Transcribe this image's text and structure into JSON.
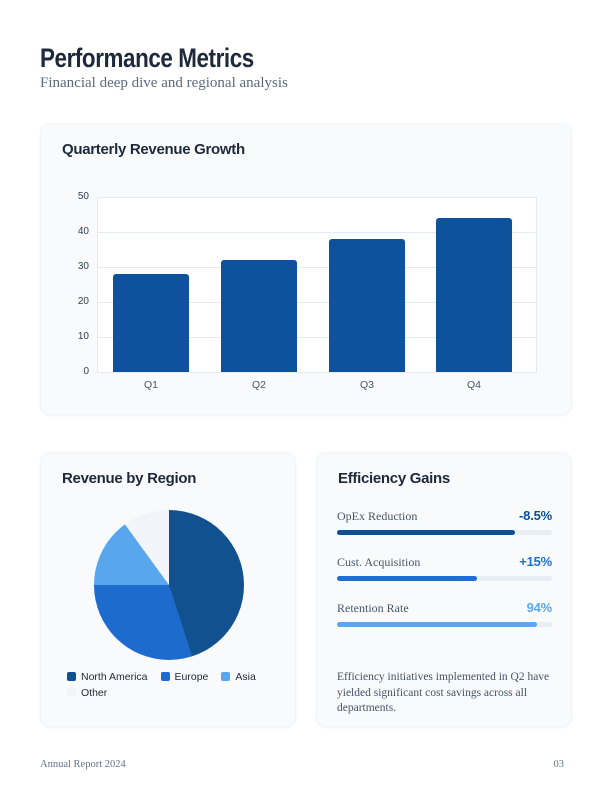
{
  "header": {
    "title": "Performance Metrics",
    "subtitle": "Financial deep dive and regional analysis"
  },
  "revenue_card": {
    "title": "Quarterly Revenue Growth"
  },
  "region_card": {
    "title": "Revenue by Region"
  },
  "efficiency_card": {
    "title": "Efficiency Gains",
    "metrics": [
      {
        "label": "OpEx Reduction",
        "value": "-8.5%",
        "fill_pct": 83,
        "color": "#0d4e92"
      },
      {
        "label": "Cust. Acquisition",
        "value": "+15%",
        "fill_pct": 65,
        "color": "#1e6fd2"
      },
      {
        "label": "Retention Rate",
        "value": "94%",
        "fill_pct": 93,
        "color": "#5ba6f0"
      }
    ],
    "note": "Efficiency initiatives implemented in Q2 have yielded significant cost savings across all departments."
  },
  "footer": {
    "left": "Annual Report 2024",
    "page_number": "03"
  },
  "colors": {
    "heading": "#1e293b",
    "card_bg": "#f8fafc",
    "bar_blue": "#0e529e",
    "track": "#e9eef5",
    "gridline": "#e4eaf1"
  },
  "chart_data": [
    {
      "type": "bar",
      "title": "Quarterly Revenue Growth",
      "categories": [
        "Q1",
        "Q2",
        "Q3",
        "Q4"
      ],
      "values": [
        28,
        32,
        38,
        44
      ],
      "xlabel": "",
      "ylabel": "",
      "ylim": [
        0,
        50
      ],
      "yticks": [
        0,
        10,
        20,
        30,
        40,
        50
      ],
      "grid": true,
      "bar_color": "#0e529e",
      "legend_position": "none"
    },
    {
      "type": "pie",
      "title": "Revenue by Region",
      "labels": [
        "North America",
        "Europe",
        "Asia",
        "Other"
      ],
      "values": [
        45,
        30,
        15,
        10
      ],
      "colors": [
        "#11518f",
        "#1e6bce",
        "#58a6ee",
        "#f1f5fa"
      ],
      "start_angle_deg": 0,
      "direction": "clockwise",
      "legend_position": "bottom"
    }
  ]
}
